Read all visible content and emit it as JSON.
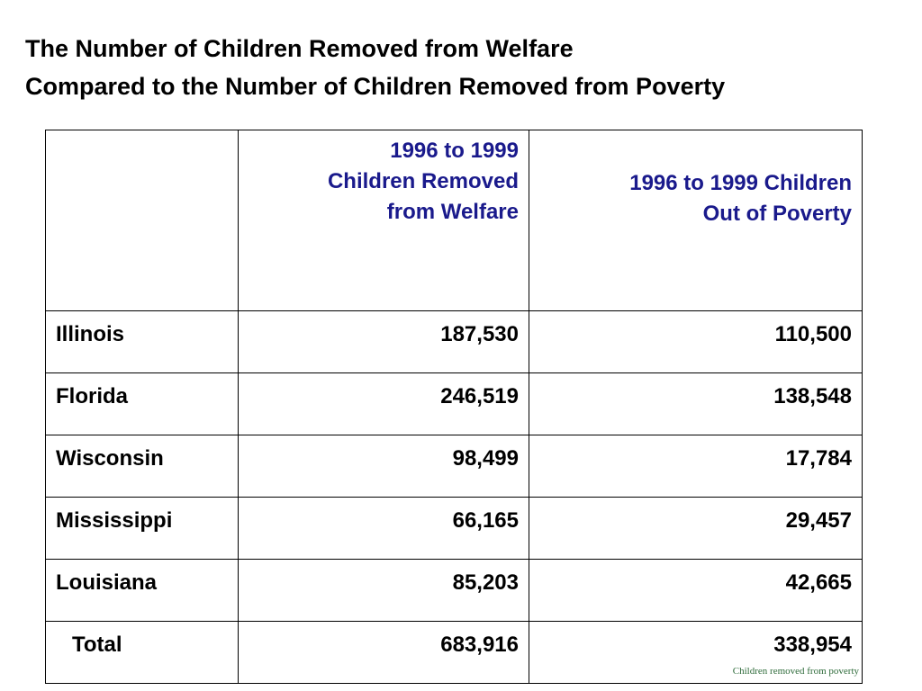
{
  "title": {
    "line1": "The Number of Children Removed from Welfare",
    "line2": "Compared to the Number of Children Removed from Poverty"
  },
  "table": {
    "header": {
      "col1": "",
      "col2": [
        "1996 to 1999",
        "Children Removed",
        "from Welfare"
      ],
      "col3": [
        "1996 to 1999 Children",
        "Out of Poverty"
      ]
    },
    "rows": [
      {
        "state": "Illinois",
        "welfare": "187,530",
        "poverty": "110,500"
      },
      {
        "state": "Florida",
        "welfare": "246,519",
        "poverty": "138,548"
      },
      {
        "state": "Wisconsin",
        "welfare": "98,499",
        "poverty": "17,784"
      },
      {
        "state": "Mississippi",
        "welfare": "66,165",
        "poverty": "29,457"
      },
      {
        "state": "Louisiana",
        "welfare": "85,203",
        "poverty": "42,665"
      },
      {
        "state": "Total",
        "welfare": "683,916",
        "poverty": "338,954"
      }
    ]
  },
  "footer": "Children removed from poverty",
  "colors": {
    "header_text": "#1a1a8c",
    "footer_text": "#2e6b3a"
  }
}
